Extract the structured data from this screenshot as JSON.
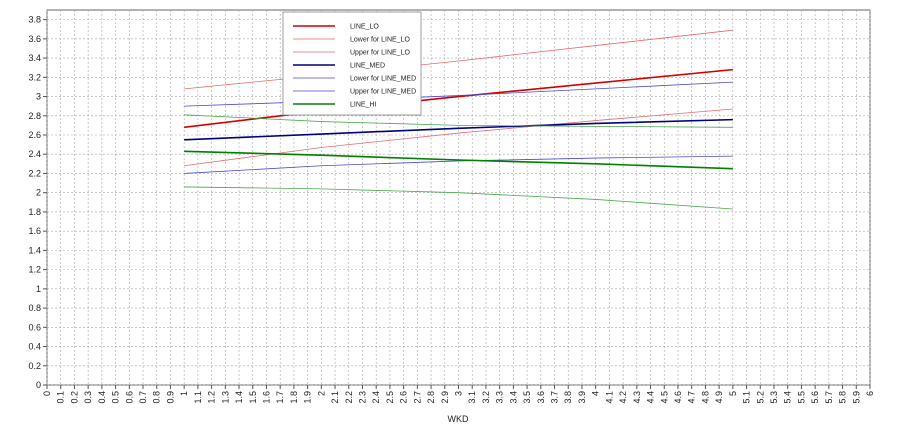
{
  "chart_data": {
    "type": "line",
    "x_label": "WKD",
    "x": [
      1,
      2,
      3,
      4,
      5
    ],
    "xlim": [
      0,
      6
    ],
    "xticks": [
      0,
      0.1,
      0.2,
      0.3,
      0.4,
      0.5,
      0.6,
      0.7,
      0.8,
      0.9,
      1,
      1.1,
      1.2,
      1.3,
      1.4,
      1.5,
      1.6,
      1.7,
      1.8,
      1.9,
      2,
      2.1,
      2.2,
      2.3,
      2.4,
      2.5,
      2.6,
      2.7,
      2.8,
      2.9,
      3,
      3.1,
      3.2,
      3.3,
      3.4,
      3.5,
      3.6,
      3.7,
      3.8,
      3.9,
      4,
      4.1,
      4.2,
      4.3,
      4.4,
      4.5,
      4.6,
      4.7,
      4.8,
      4.9,
      5,
      5.1,
      5.2,
      5.3,
      5.4,
      5.5,
      5.6,
      5.7,
      5.8,
      5.9,
      6
    ],
    "ylim": [
      0,
      3.9
    ],
    "yticks": [
      0,
      0.2,
      0.4,
      0.6,
      0.8,
      1,
      1.2,
      1.4,
      1.6,
      1.8,
      2,
      2.2,
      2.4,
      2.6,
      2.8,
      3,
      3.2,
      3.4,
      3.6,
      3.8
    ],
    "grid": true,
    "series": [
      {
        "name": "LINE_LO",
        "color": "#d40000",
        "values": [
          2.68,
          2.85,
          3.0,
          3.14,
          3.28
        ]
      },
      {
        "name": "Lower for LINE_LO",
        "color": "#e86a6a",
        "values": [
          2.28,
          2.47,
          2.62,
          2.75,
          2.87
        ]
      },
      {
        "name": "Upper for LINE_LO",
        "color": "#e86a6a",
        "values": [
          3.08,
          3.22,
          3.37,
          3.53,
          3.69
        ]
      },
      {
        "name": "LINE_MED",
        "color": "#000080",
        "values": [
          2.55,
          2.61,
          2.67,
          2.72,
          2.76
        ]
      },
      {
        "name": "Lower for LINE_MED",
        "color": "#4a4ad0",
        "values": [
          2.2,
          2.28,
          2.33,
          2.36,
          2.38
        ]
      },
      {
        "name": "Upper for LINE_MED",
        "color": "#4a4ad0",
        "values": [
          2.9,
          2.95,
          3.01,
          3.08,
          3.15
        ]
      },
      {
        "name": "LINE_HI",
        "color": "#008000",
        "values": [
          2.43,
          2.39,
          2.34,
          2.3,
          2.25
        ]
      },
      {
        "color": "#4aa84a",
        "values": [
          2.81,
          2.74,
          2.7,
          2.69,
          2.68
        ]
      },
      {
        "color": "#4aa84a",
        "values": [
          2.06,
          2.04,
          2.0,
          1.93,
          1.83
        ]
      }
    ]
  }
}
